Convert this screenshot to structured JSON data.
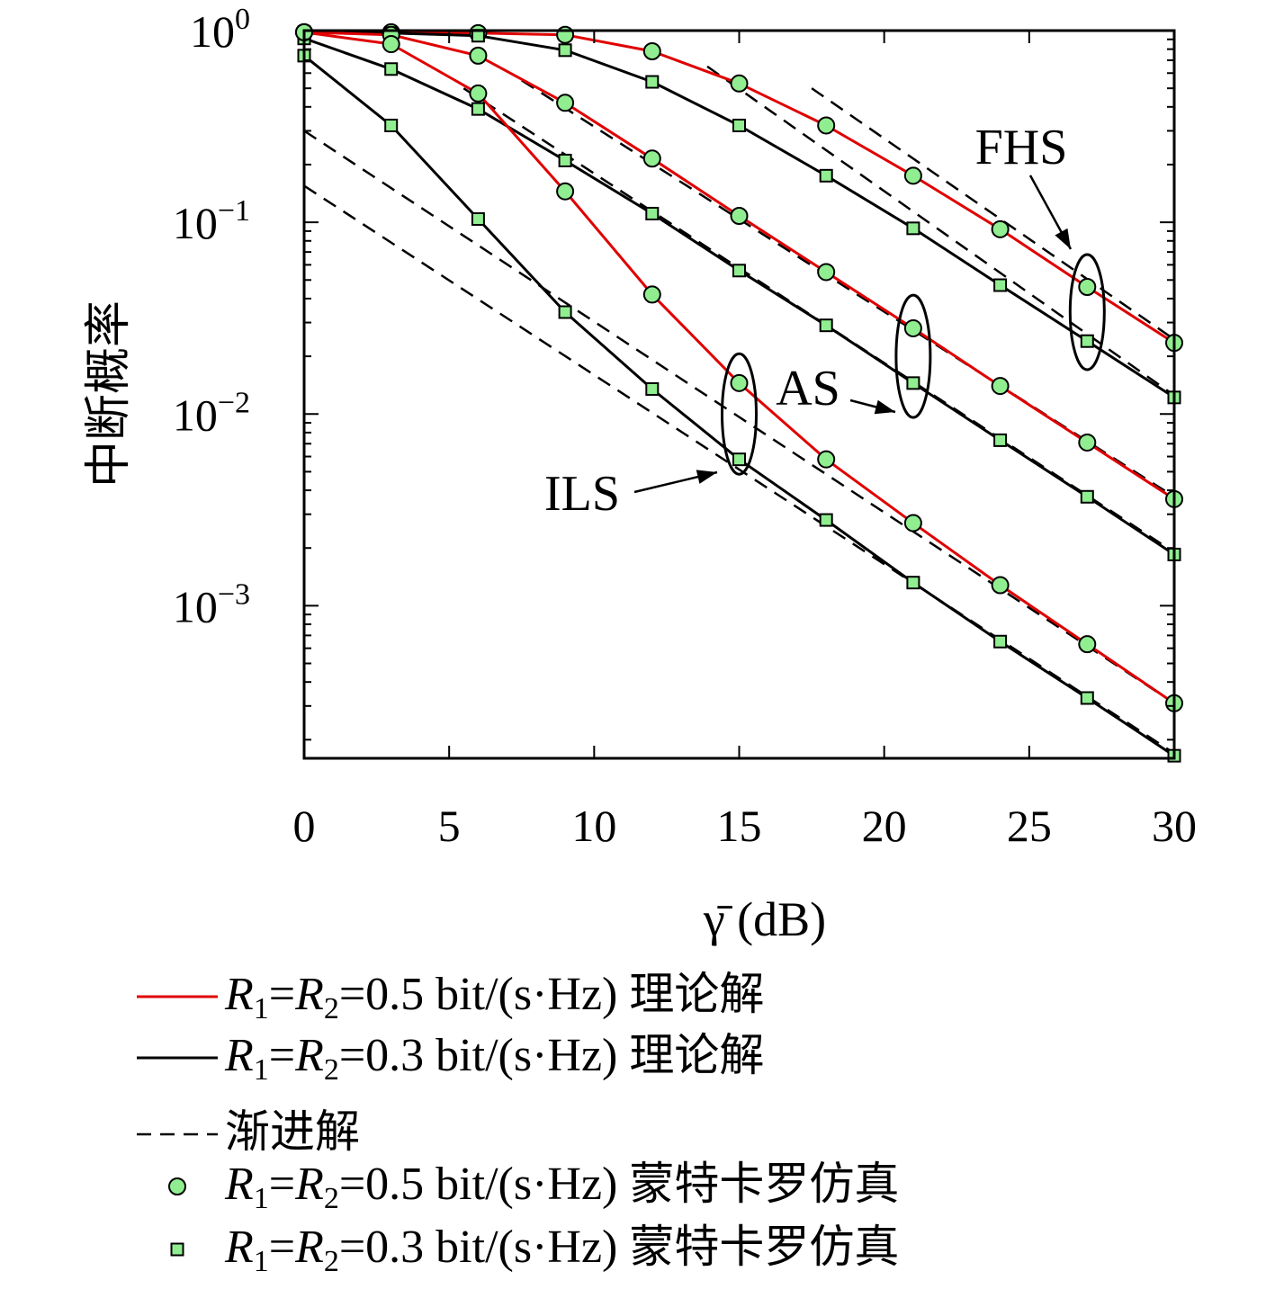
{
  "chart_data": {
    "type": "line",
    "title": "",
    "xlabel": "γ̄ (dB)",
    "ylabel": "中断概率",
    "xlim": [
      0,
      30
    ],
    "ylim": [
      0.00016,
      1
    ],
    "yscale": "log",
    "x_ticks": [
      0,
      5,
      10,
      15,
      20,
      25,
      30
    ],
    "y_ticks": [
      {
        "value": 1,
        "base": "10",
        "exp": "0"
      },
      {
        "value": 0.1,
        "base": "10",
        "exp": "−1"
      },
      {
        "value": 0.01,
        "base": "10",
        "exp": "−2"
      },
      {
        "value": 0.001,
        "base": "10",
        "exp": "−3"
      }
    ],
    "grid": false,
    "legend_position": "bottom",
    "colors": {
      "theory_05": "#e00000",
      "theory_03": "#000000",
      "marker_fill": "#90ee90",
      "marker_edge": "#000000"
    },
    "legend": [
      {
        "key": "theory_05",
        "style": "solid-red",
        "label": "R1=R2=0.5 bit/(s·Hz) 理论解",
        "R1": "R",
        "sub1": "1",
        "R2": "R",
        "sub2": "2",
        "rate": "=0.5 bit/(s·Hz)",
        "suffix": "理论解"
      },
      {
        "key": "theory_03",
        "style": "solid-black",
        "label": "R1=R2=0.3 bit/(s·Hz) 理论解",
        "R1": "R",
        "sub1": "1",
        "R2": "R",
        "sub2": "2",
        "rate": "=0.3 bit/(s·Hz)",
        "suffix": "理论解"
      },
      {
        "key": "asymptotic",
        "style": "dashed-black",
        "label": "渐进解",
        "suffix": "渐进解"
      },
      {
        "key": "sim_05",
        "style": "circle",
        "label": "R1=R2=0.5 bit/(s·Hz) 蒙特卡罗仿真",
        "R1": "R",
        "sub1": "1",
        "R2": "R",
        "sub2": "2",
        "rate": "=0.5 bit/(s·Hz)",
        "suffix": "蒙特卡罗仿真"
      },
      {
        "key": "sim_03",
        "style": "square",
        "label": "R1=R2=0.3 bit/(s·Hz) 蒙特卡罗仿真",
        "R1": "R",
        "sub1": "1",
        "R2": "R",
        "sub2": "2",
        "rate": "=0.3 bit/(s·Hz)",
        "suffix": "蒙特卡罗仿真"
      }
    ],
    "annotations": [
      {
        "text": "FHS",
        "ellipse_center": [
          27,
          0.034
        ]
      },
      {
        "text": "AS",
        "ellipse_center": [
          21,
          0.02
        ]
      },
      {
        "text": "ILS",
        "ellipse_center": [
          15,
          0.01
        ]
      }
    ],
    "x": [
      0,
      3,
      6,
      9,
      12,
      15,
      18,
      21,
      24,
      27,
      30
    ],
    "series": [
      {
        "scheme": "FHS",
        "rate": 0.5,
        "kind": "theory+sim",
        "values": [
          0.98,
          0.98,
          0.97,
          0.95,
          0.78,
          0.53,
          0.32,
          0.175,
          0.092,
          0.046,
          0.0235
        ]
      },
      {
        "scheme": "FHS",
        "rate": 0.3,
        "kind": "theory+sim",
        "values": [
          0.98,
          0.97,
          0.94,
          0.79,
          0.54,
          0.32,
          0.175,
          0.093,
          0.047,
          0.024,
          0.0122
        ]
      },
      {
        "scheme": "AS",
        "rate": 0.5,
        "kind": "theory+sim",
        "values": [
          0.98,
          0.95,
          0.74,
          0.42,
          0.215,
          0.108,
          0.055,
          0.028,
          0.014,
          0.0071,
          0.0036
        ]
      },
      {
        "scheme": "AS",
        "rate": 0.3,
        "kind": "theory+sim",
        "values": [
          0.91,
          0.63,
          0.39,
          0.21,
          0.111,
          0.056,
          0.029,
          0.0145,
          0.0073,
          0.0037,
          0.00185
        ]
      },
      {
        "scheme": "ILS",
        "rate": 0.5,
        "kind": "theory+sim",
        "values": [
          0.98,
          0.85,
          0.47,
          0.145,
          0.042,
          0.0145,
          0.0058,
          0.0027,
          0.00128,
          0.00063,
          0.00031
        ]
      },
      {
        "scheme": "ILS",
        "rate": 0.3,
        "kind": "theory+sim",
        "values": [
          0.74,
          0.32,
          0.104,
          0.034,
          0.0135,
          0.0058,
          0.0028,
          0.00132,
          0.00065,
          0.00033,
          0.000165
        ]
      }
    ],
    "asymptotes": [
      {
        "scheme": "FHS",
        "rate": 0.5,
        "x": [
          17.5,
          30
        ],
        "values": [
          0.5,
          0.0245
        ]
      },
      {
        "scheme": "FHS",
        "rate": 0.3,
        "x": [
          13.9,
          30
        ],
        "values": [
          0.65,
          0.0125
        ]
      },
      {
        "scheme": "AS",
        "rate": 0.5,
        "x": [
          7.5,
          30
        ],
        "values": [
          0.55,
          0.0037
        ]
      },
      {
        "scheme": "AS",
        "rate": 0.3,
        "x": [
          5.5,
          30
        ],
        "values": [
          0.5,
          0.0019
        ]
      },
      {
        "scheme": "ILS",
        "rate": 0.5,
        "x": [
          0,
          30
        ],
        "values": [
          0.3,
          0.00031
        ]
      },
      {
        "scheme": "ILS",
        "rate": 0.3,
        "x": [
          0,
          30
        ],
        "values": [
          0.155,
          0.00017
        ]
      }
    ]
  }
}
